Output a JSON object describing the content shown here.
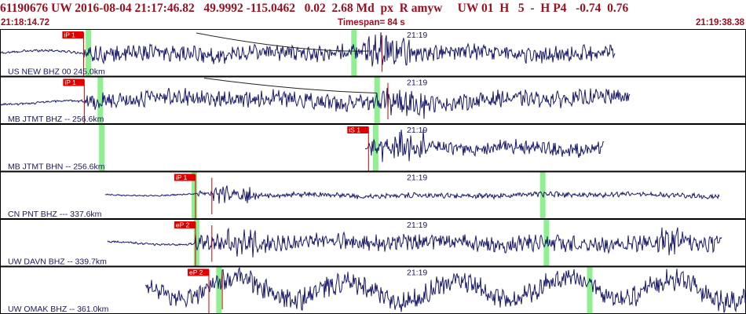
{
  "header": {
    "event_line": "61190676 UW 2016-08-04 21:17:46.82   49.9992 -115.0462   0.02  2.68 Md  px  R amyw     UW 01  H   5  -  H P4   -0.74  0.76"
  },
  "subheader": {
    "start_time": "21:18:14.72",
    "timespan": "Timespan=  84 s",
    "end_time": "21:19:38.38"
  },
  "colors": {
    "header_text": "#9b1020",
    "trace": "#1a1a6e",
    "pick_box": "#e00000",
    "pick_line": "#cc0000",
    "highlight": "#8ef08e",
    "panel_border": "#000000"
  },
  "channels": [
    {
      "label": "US NEW BHZ 00 245.0km",
      "time_mark": "21:19",
      "pick": "iP 1",
      "pick_t": 0.112,
      "highlights": [
        0.118,
        0.474
      ],
      "start": 0.002,
      "end": 0.825,
      "amp": 0.55,
      "type": "quake",
      "onset": 0.112,
      "big": 0.49,
      "dense": 0.5,
      "red_extra": 0.512
    },
    {
      "label": "MB JTMT BHZ -- 256.6km",
      "time_mark": "21:19",
      "pick": "iP 1",
      "pick_t": 0.113,
      "highlights": [
        0.134,
        0.505
      ],
      "start": 0.002,
      "end": 0.845,
      "amp": 0.5,
      "type": "quake2",
      "onset": 0.113,
      "big": 0.51,
      "dense": 0.55,
      "red_extra": 0.52
    },
    {
      "label": "MB JTMT BHN -- 256.6km",
      "time_mark": "21:19",
      "pick": "iS 1",
      "pick_t": 0.494,
      "highlights": [
        0.136,
        0.503
      ],
      "start": 0.49,
      "end": 0.81,
      "amp": 0.55,
      "type": "late",
      "onset": 0.494,
      "big": 0.51,
      "dense": 0.5,
      "red_extra": -1
    },
    {
      "label": "CN PNT BHZ --- 337.6km",
      "time_mark": "21:19",
      "pick": "iP 1",
      "pick_t": 0.262,
      "highlights": [
        0.26,
        0.727
      ],
      "start": 0.142,
      "end": 0.965,
      "amp": 0.3,
      "type": "quiet",
      "onset": 0.262,
      "big": 0.285,
      "dense": 0.3,
      "red_extra": 0.284
    },
    {
      "label": "UW DAVN BHZ -- 339.7km",
      "time_mark": "21:19",
      "pick": "eP 2",
      "pick_t": 0.262,
      "highlights": [
        0.263,
        0.732
      ],
      "start": 0.145,
      "end": 0.968,
      "amp": 0.45,
      "type": "noisy",
      "onset": 0.262,
      "big": 0.3,
      "dense": 0.62,
      "red_extra": 0.284
    },
    {
      "label": "UW OMAK BHZ -- 361.0km",
      "time_mark": "21:19",
      "pick": "eP 2",
      "pick_t": 0.28,
      "highlights": [
        0.293,
        0.79
      ],
      "start": 0.195,
      "end": 1.0,
      "amp": 0.6,
      "type": "wavy",
      "onset": 0.28,
      "big": 0.3,
      "dense": 0.5,
      "red_extra": 0.298
    }
  ]
}
